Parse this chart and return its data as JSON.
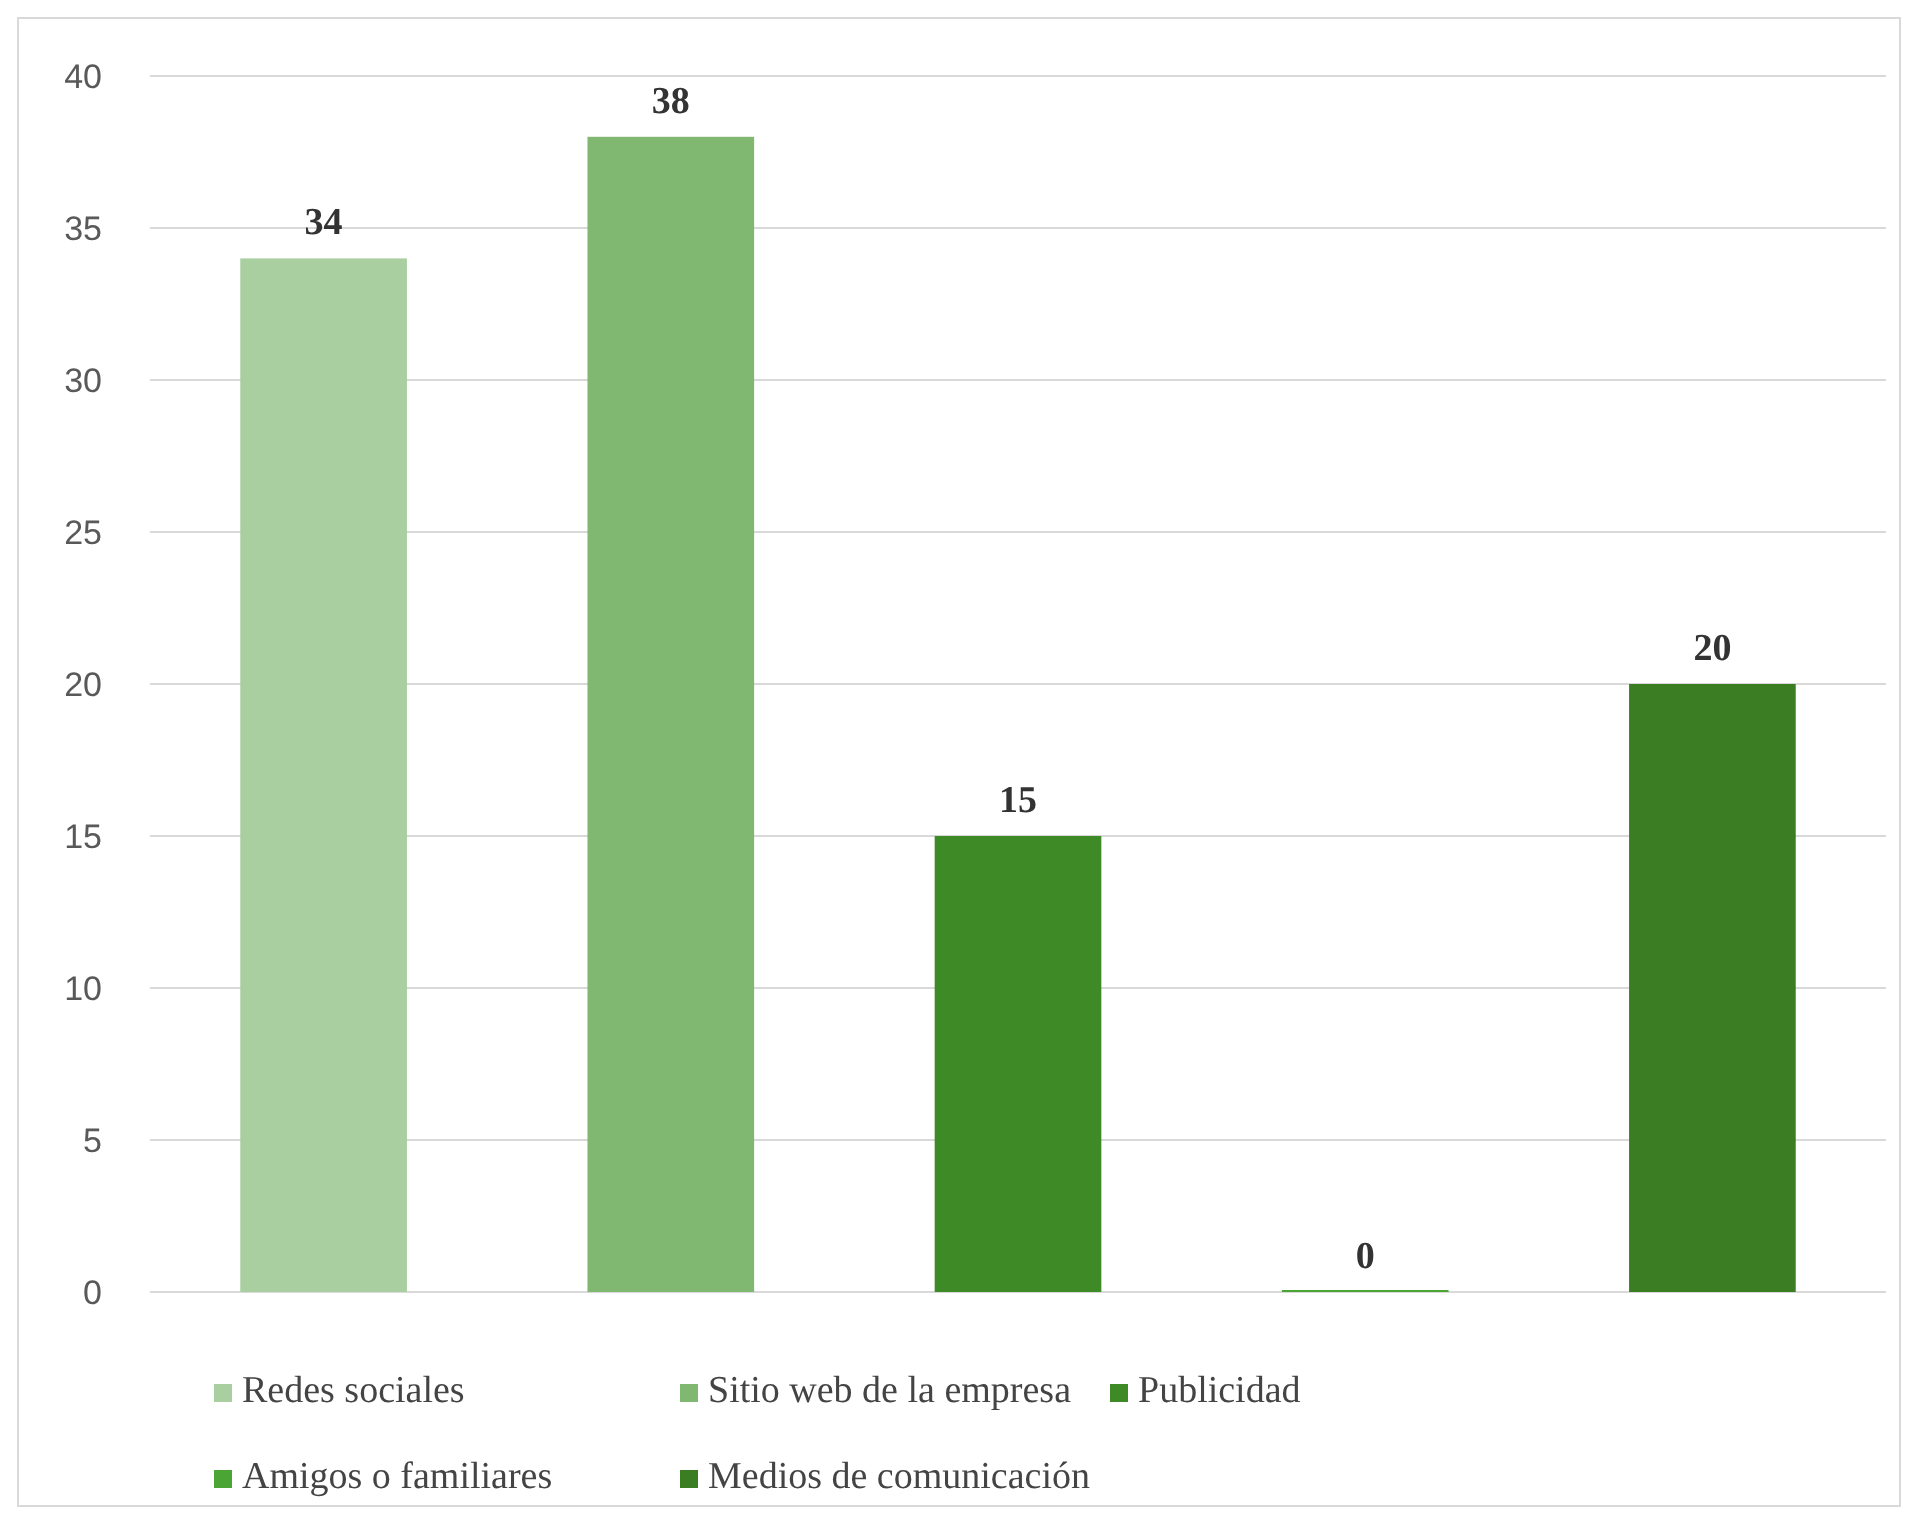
{
  "chart_data": {
    "type": "bar",
    "categories": [
      null
    ],
    "series": [
      {
        "name": "Redes sociales",
        "color": "#a9cea0",
        "values": [
          34
        ]
      },
      {
        "name": "Sitio web de la empresa",
        "color": "#80b871",
        "values": [
          38
        ]
      },
      {
        "name": "Publicidad",
        "color": "#3e8a26",
        "values": [
          15
        ]
      },
      {
        "name": "Amigos o familiares",
        "color": "#4aa534",
        "values": [
          0
        ]
      },
      {
        "name": "Medios de comunicación",
        "color": "#3a7d23",
        "values": [
          20
        ]
      }
    ],
    "ylim": [
      0,
      40
    ],
    "yticks": [
      0,
      5,
      10,
      15,
      20,
      25,
      30,
      35,
      40
    ],
    "grid": "y",
    "legend": "bottom",
    "data_labels": true
  }
}
